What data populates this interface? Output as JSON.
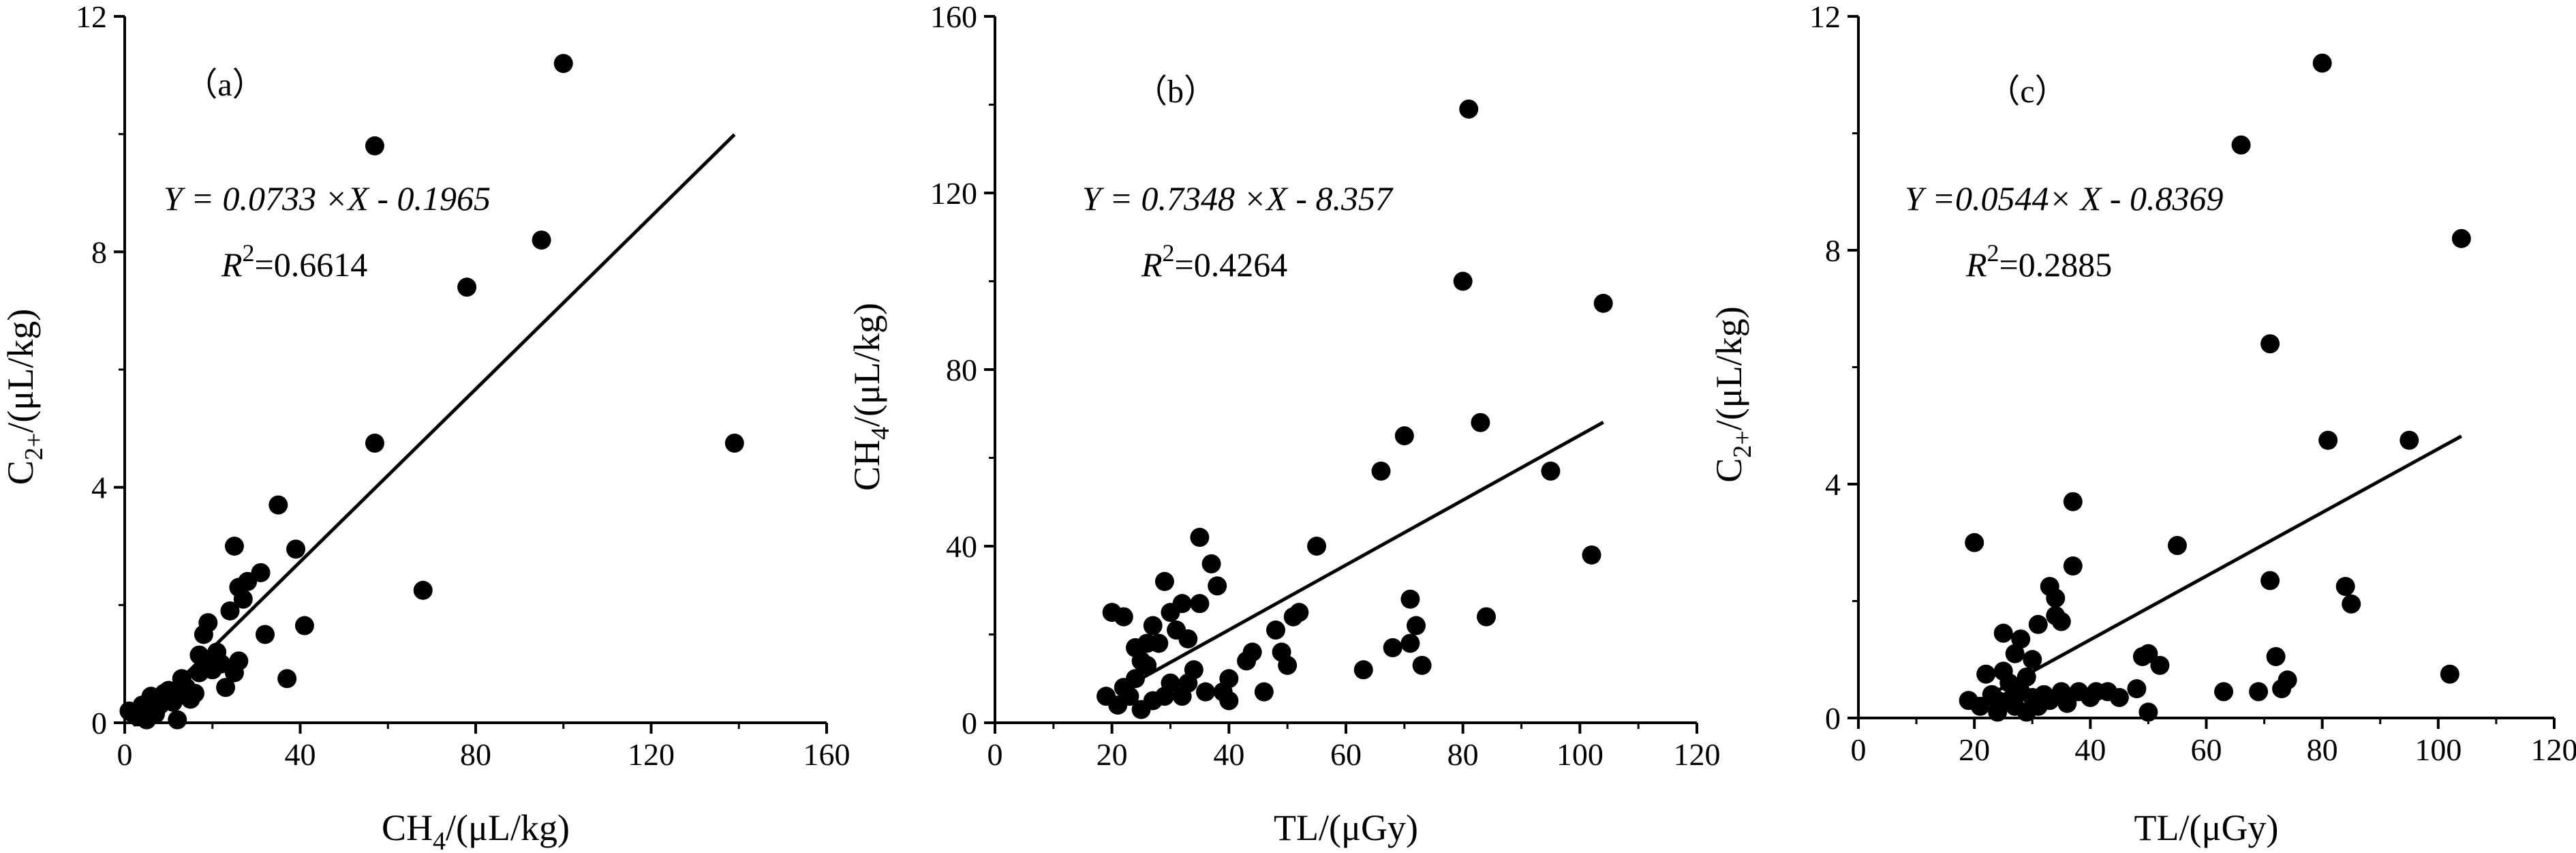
{
  "chart_data": [
    {
      "type": "scatter",
      "panel_label": "（a）",
      "xlabel_main": "CH",
      "xlabel_sub": "4",
      "xlabel_rest": "/(μL/kg)",
      "ylabel_main": "C",
      "ylabel_sub": "2+",
      "ylabel_rest": "/(μL/kg)",
      "xlim": [
        0,
        160
      ],
      "ylim": [
        0,
        12
      ],
      "xticks": [
        0,
        40,
        80,
        120,
        160
      ],
      "yticks": [
        0,
        4,
        8,
        12
      ],
      "equation": "Y = 0.0733 ×X - 0.1965",
      "r2_label": "R",
      "r2_sup": "2",
      "r2_value": "=0.6614",
      "fit": {
        "slope": 0.0733,
        "intercept": -0.1965,
        "x_range": [
          2,
          139
        ]
      },
      "points": [
        [
          1,
          0.2
        ],
        [
          2,
          0.15
        ],
        [
          3,
          0.1
        ],
        [
          4,
          0.3
        ],
        [
          5,
          0.05
        ],
        [
          6,
          0.2
        ],
        [
          6,
          0.45
        ],
        [
          7,
          0.15
        ],
        [
          8,
          0.3
        ],
        [
          9,
          0.5
        ],
        [
          10,
          0.55
        ],
        [
          11,
          0.35
        ],
        [
          12,
          0.45
        ],
        [
          12,
          0.05
        ],
        [
          13,
          0.75
        ],
        [
          14,
          0.6
        ],
        [
          15,
          0.4
        ],
        [
          16,
          0.5
        ],
        [
          17,
          0.85
        ],
        [
          17,
          1.15
        ],
        [
          18,
          1.5
        ],
        [
          19,
          1.05
        ],
        [
          19,
          1.7
        ],
        [
          20,
          0.9
        ],
        [
          21,
          1.2
        ],
        [
          22,
          1.0
        ],
        [
          23,
          0.6
        ],
        [
          24,
          1.9
        ],
        [
          25,
          3.0
        ],
        [
          25,
          0.85
        ],
        [
          26,
          1.05
        ],
        [
          26,
          2.3
        ],
        [
          27,
          2.1
        ],
        [
          28,
          2.4
        ],
        [
          31,
          2.55
        ],
        [
          32,
          1.5
        ],
        [
          35,
          3.7
        ],
        [
          37,
          0.75
        ],
        [
          39,
          2.95
        ],
        [
          41,
          1.65
        ],
        [
          57,
          4.75
        ],
        [
          57,
          9.8
        ],
        [
          68,
          2.25
        ],
        [
          78,
          7.4
        ],
        [
          95,
          8.2
        ],
        [
          100,
          11.2
        ],
        [
          139,
          4.75
        ]
      ]
    },
    {
      "type": "scatter",
      "panel_label": "（b）",
      "xlabel_main": "TL/(μGy)",
      "xlabel_sub": "",
      "xlabel_rest": "",
      "ylabel_main": "CH",
      "ylabel_sub": "4",
      "ylabel_rest": "/(μL/kg)",
      "xlim": [
        0,
        120
      ],
      "ylim": [
        0,
        160
      ],
      "xticks": [
        0,
        20,
        40,
        60,
        80,
        100,
        120
      ],
      "yticks": [
        0,
        40,
        80,
        120,
        160
      ],
      "equation": "Y = 0.7348 ×X - 8.357",
      "r2_label": "R",
      "r2_sup": "2",
      "r2_value": "=0.4264",
      "fit": {
        "slope": 0.7348,
        "intercept": -8.357,
        "x_range": [
          22,
          104
        ]
      },
      "points": [
        [
          19,
          6
        ],
        [
          20,
          25
        ],
        [
          21,
          4
        ],
        [
          22,
          24
        ],
        [
          22,
          8
        ],
        [
          23,
          6
        ],
        [
          24,
          10
        ],
        [
          24,
          17
        ],
        [
          25,
          3
        ],
        [
          25,
          14
        ],
        [
          26,
          13
        ],
        [
          26,
          18
        ],
        [
          27,
          5
        ],
        [
          27,
          22
        ],
        [
          28,
          18
        ],
        [
          29,
          32
        ],
        [
          29,
          6
        ],
        [
          30,
          9
        ],
        [
          30,
          25
        ],
        [
          31,
          21
        ],
        [
          32,
          6
        ],
        [
          32,
          27
        ],
        [
          33,
          19
        ],
        [
          33,
          9
        ],
        [
          34,
          12
        ],
        [
          35,
          27
        ],
        [
          35,
          42
        ],
        [
          36,
          7
        ],
        [
          37,
          36
        ],
        [
          38,
          31
        ],
        [
          39,
          7
        ],
        [
          40,
          5
        ],
        [
          40,
          10
        ],
        [
          43,
          14
        ],
        [
          44,
          16
        ],
        [
          46,
          7
        ],
        [
          48,
          21
        ],
        [
          49,
          16
        ],
        [
          50,
          13
        ],
        [
          51,
          24
        ],
        [
          52,
          25
        ],
        [
          55,
          40
        ],
        [
          63,
          12
        ],
        [
          66,
          57
        ],
        [
          68,
          17
        ],
        [
          70,
          65
        ],
        [
          71,
          28
        ],
        [
          71,
          18
        ],
        [
          72,
          22
        ],
        [
          73,
          13
        ],
        [
          80,
          100
        ],
        [
          81,
          139
        ],
        [
          83,
          68
        ],
        [
          84,
          24
        ],
        [
          95,
          57
        ],
        [
          102,
          38
        ],
        [
          104,
          95
        ]
      ]
    },
    {
      "type": "scatter",
      "panel_label": "（c）",
      "xlabel_main": "TL/(μGy)",
      "xlabel_sub": "",
      "xlabel_rest": "",
      "ylabel_main": "C",
      "ylabel_sub": "2+",
      "ylabel_rest": "/(μL/kg)",
      "xlim": [
        0,
        120
      ],
      "ylim": [
        0,
        12
      ],
      "xticks": [
        0,
        20,
        40,
        60,
        80,
        100,
        120
      ],
      "yticks": [
        0,
        4,
        8,
        12
      ],
      "equation": "Y =0.0544× X - 0.8369",
      "r2_label": "R",
      "r2_sup": "2",
      "r2_value": "=0.2885",
      "fit": {
        "slope": 0.0544,
        "intercept": -0.8369,
        "x_range": [
          22,
          104
        ]
      },
      "points": [
        [
          19,
          0.3
        ],
        [
          20,
          3.0
        ],
        [
          21,
          0.2
        ],
        [
          22,
          0.75
        ],
        [
          23,
          0.4
        ],
        [
          24,
          0.1
        ],
        [
          24,
          0.3
        ],
        [
          25,
          1.45
        ],
        [
          25,
          0.8
        ],
        [
          26,
          0.3
        ],
        [
          26,
          0.6
        ],
        [
          27,
          0.2
        ],
        [
          27,
          1.1
        ],
        [
          28,
          1.35
        ],
        [
          28,
          0.45
        ],
        [
          29,
          0.1
        ],
        [
          29,
          0.7
        ],
        [
          30,
          1.0
        ],
        [
          30,
          0.35
        ],
        [
          31,
          0.2
        ],
        [
          31,
          1.6
        ],
        [
          32,
          0.4
        ],
        [
          33,
          2.25
        ],
        [
          33,
          0.3
        ],
        [
          34,
          1.75
        ],
        [
          34,
          2.05
        ],
        [
          35,
          1.65
        ],
        [
          35,
          0.45
        ],
        [
          36,
          0.25
        ],
        [
          37,
          3.7
        ],
        [
          37,
          2.6
        ],
        [
          38,
          0.45
        ],
        [
          40,
          0.35
        ],
        [
          41,
          0.45
        ],
        [
          43,
          0.45
        ],
        [
          45,
          0.35
        ],
        [
          48,
          0.5
        ],
        [
          49,
          1.05
        ],
        [
          50,
          0.1
        ],
        [
          50,
          1.1
        ],
        [
          52,
          0.9
        ],
        [
          55,
          2.95
        ],
        [
          63,
          0.45
        ],
        [
          66,
          9.8
        ],
        [
          69,
          0.45
        ],
        [
          71,
          6.4
        ],
        [
          71,
          2.35
        ],
        [
          72,
          1.05
        ],
        [
          73,
          0.5
        ],
        [
          74,
          0.65
        ],
        [
          80,
          11.2
        ],
        [
          81,
          4.75
        ],
        [
          84,
          2.25
        ],
        [
          85,
          1.95
        ],
        [
          95,
          4.75
        ],
        [
          102,
          0.75
        ],
        [
          104,
          8.2
        ]
      ]
    }
  ]
}
